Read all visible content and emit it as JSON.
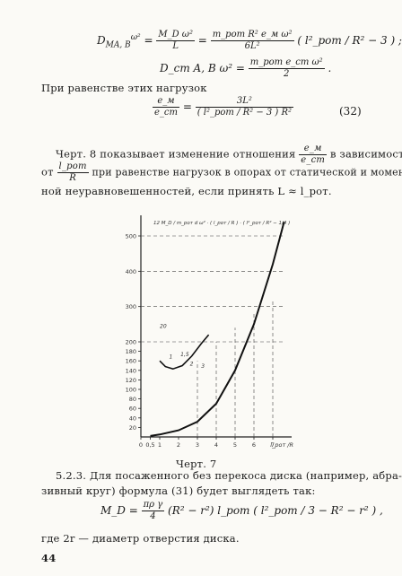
{
  "formulas": {
    "f1_lhs": "D",
    "f1_lhs_sub": "MA, B",
    "f1_lhs_sup": "ω²",
    "f1_eq": "=",
    "f1_num1": "M_D ω²",
    "f1_den1": "L",
    "f1_num2": "m_рот R² e_м ω²",
    "f1_den2": "6L²",
    "f1_paren": "( l²_рот / R² − 3 ) ;",
    "f2_lhs": "D_ст A, B ω² =",
    "f2_num": "m_рот e_ст ω²",
    "f2_den": "2",
    "f2_end": ".",
    "f3_lhs_num": "e_м",
    "f3_lhs_den": "e_ст",
    "f3_num": "3L²",
    "f3_den": "( l²_рот / R² − 3 ) R²",
    "f3_number": "(32)",
    "f4_lhs": "M_D =",
    "f4_num": "πρ γ",
    "f4_den": "4",
    "f4_rest": "(R² − r²) l_рот ( l²_рот / 3 − R² − r² ) ,"
  },
  "text": {
    "equal_loads": "При равенстве этих нагрузок",
    "para1_a": "Черт. 8 показывает изменение отношения",
    "para1_ratio_num": "e_м",
    "para1_ratio_den": "e_ст",
    "para1_b": "в зависимости",
    "para2_a": "от",
    "para2_ratio_num": "l_рот",
    "para2_ratio_den": "R",
    "para2_b": "при равенстве нагрузок в опорах от статической и момент-",
    "para3": "ной неуравновешенностей, если принять L ≈ l_рот.",
    "caption": "Черт. 7",
    "section_a": "5.2.3. Для посаженного без перекоса диска (например, абра-",
    "section_b": "зивный круг) формула (31) будет выглядеть так:",
    "where": "где 2r — диаметр отверстия диска.",
    "page_number": "44"
  },
  "chart_data": {
    "type": "line",
    "title": "",
    "xlabel": "l_рот /R",
    "ylabel": "",
    "formula_label": "12 M_D / m_рот d ω² · ( l_рот / R ) · ( l²_рот / R² − 1/4 )",
    "x_ticks": [
      "0",
      "0,5",
      "1",
      "2",
      "3",
      "4",
      "5",
      "6",
      "7"
    ],
    "x_tick_values": [
      0,
      0.5,
      1,
      2,
      3,
      4,
      5,
      6,
      7
    ],
    "y_ticks": [
      "20",
      "40",
      "60",
      "80",
      "100",
      "120",
      "140",
      "160",
      "180",
      "200",
      "300",
      "400",
      "500"
    ],
    "y_tick_values": [
      20,
      40,
      60,
      80,
      100,
      120,
      140,
      160,
      180,
      200,
      300,
      400,
      500
    ],
    "inset_labels": [
      "20",
      "1",
      "1,5",
      "2",
      "3"
    ],
    "series": [
      {
        "x": [
          0.5,
          1,
          2,
          3,
          4,
          5,
          6,
          7,
          7.6
        ],
        "y": [
          2,
          5,
          14,
          32,
          70,
          140,
          250,
          420,
          540
        ]
      },
      {
        "x": [
          1,
          1.3,
          1.7,
          2.2,
          2.7,
          3.2,
          3.6
        ],
        "y": [
          160,
          148,
          143,
          150,
          170,
          196,
          220
        ]
      }
    ]
  }
}
